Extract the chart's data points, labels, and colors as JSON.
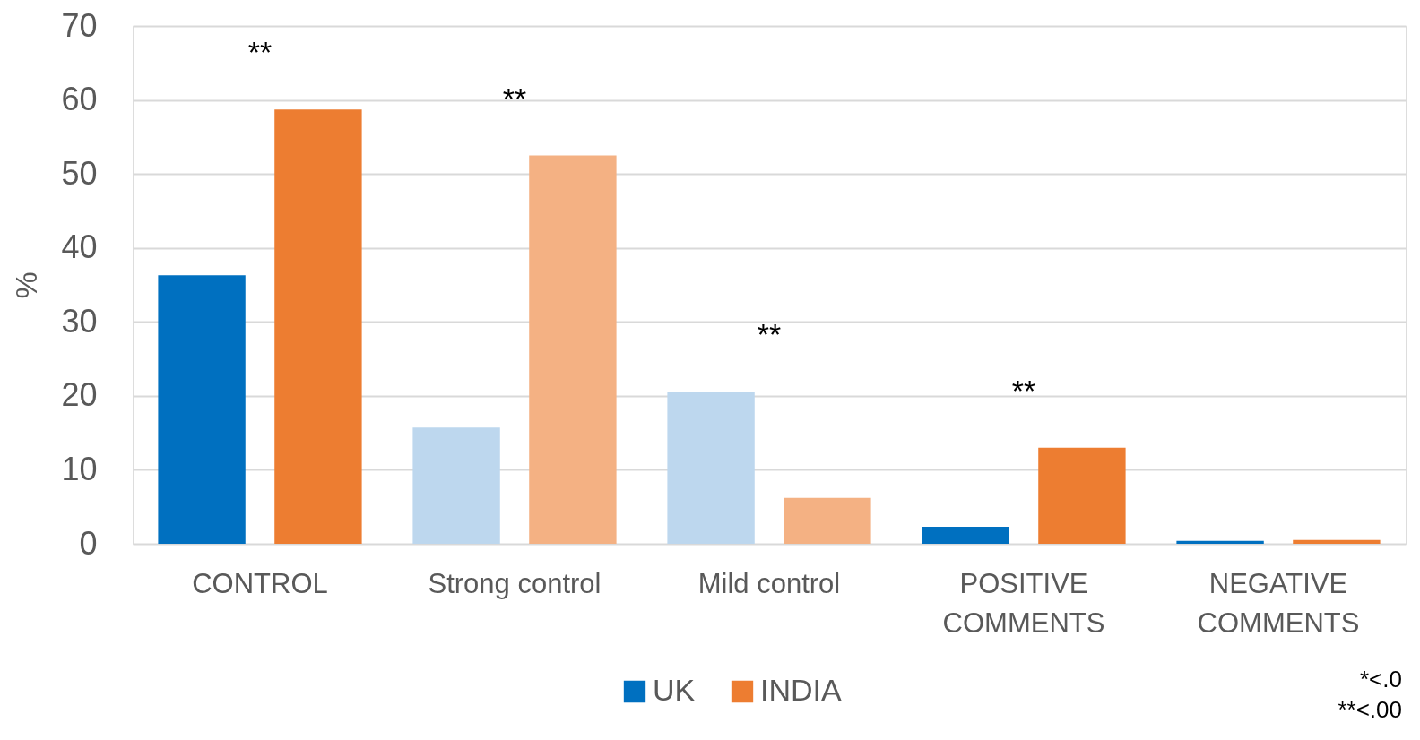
{
  "chart_data": {
    "type": "bar",
    "ylabel": "%",
    "categories": [
      "CONTROL",
      "Strong control",
      "Mild control",
      "POSITIVE COMMENTS",
      "NEGATIVE COMMENTS"
    ],
    "series": [
      {
        "name": "UK",
        "color": "#0070c0",
        "colors": [
          "#0070c0",
          "#bdd7ee",
          "#bdd7ee",
          "#0070c0",
          "#0070c0"
        ],
        "values": [
          36.3,
          15.7,
          20.6,
          2.3,
          0.4
        ]
      },
      {
        "name": "INDIA",
        "color": "#ed7d31",
        "colors": [
          "#ed7d31",
          "#f4b183",
          "#f4b183",
          "#ed7d31",
          "#ed7d31"
        ],
        "values": [
          58.7,
          52.5,
          6.2,
          13.0,
          0.5
        ]
      }
    ],
    "ylim": [
      0,
      70
    ],
    "yticks": [
      0,
      10,
      20,
      30,
      40,
      50,
      60,
      70
    ],
    "grid": "y",
    "legend": "bottom",
    "annotations": [
      "**",
      "**",
      "**",
      "**",
      "*<.0",
      "**<.00"
    ]
  }
}
